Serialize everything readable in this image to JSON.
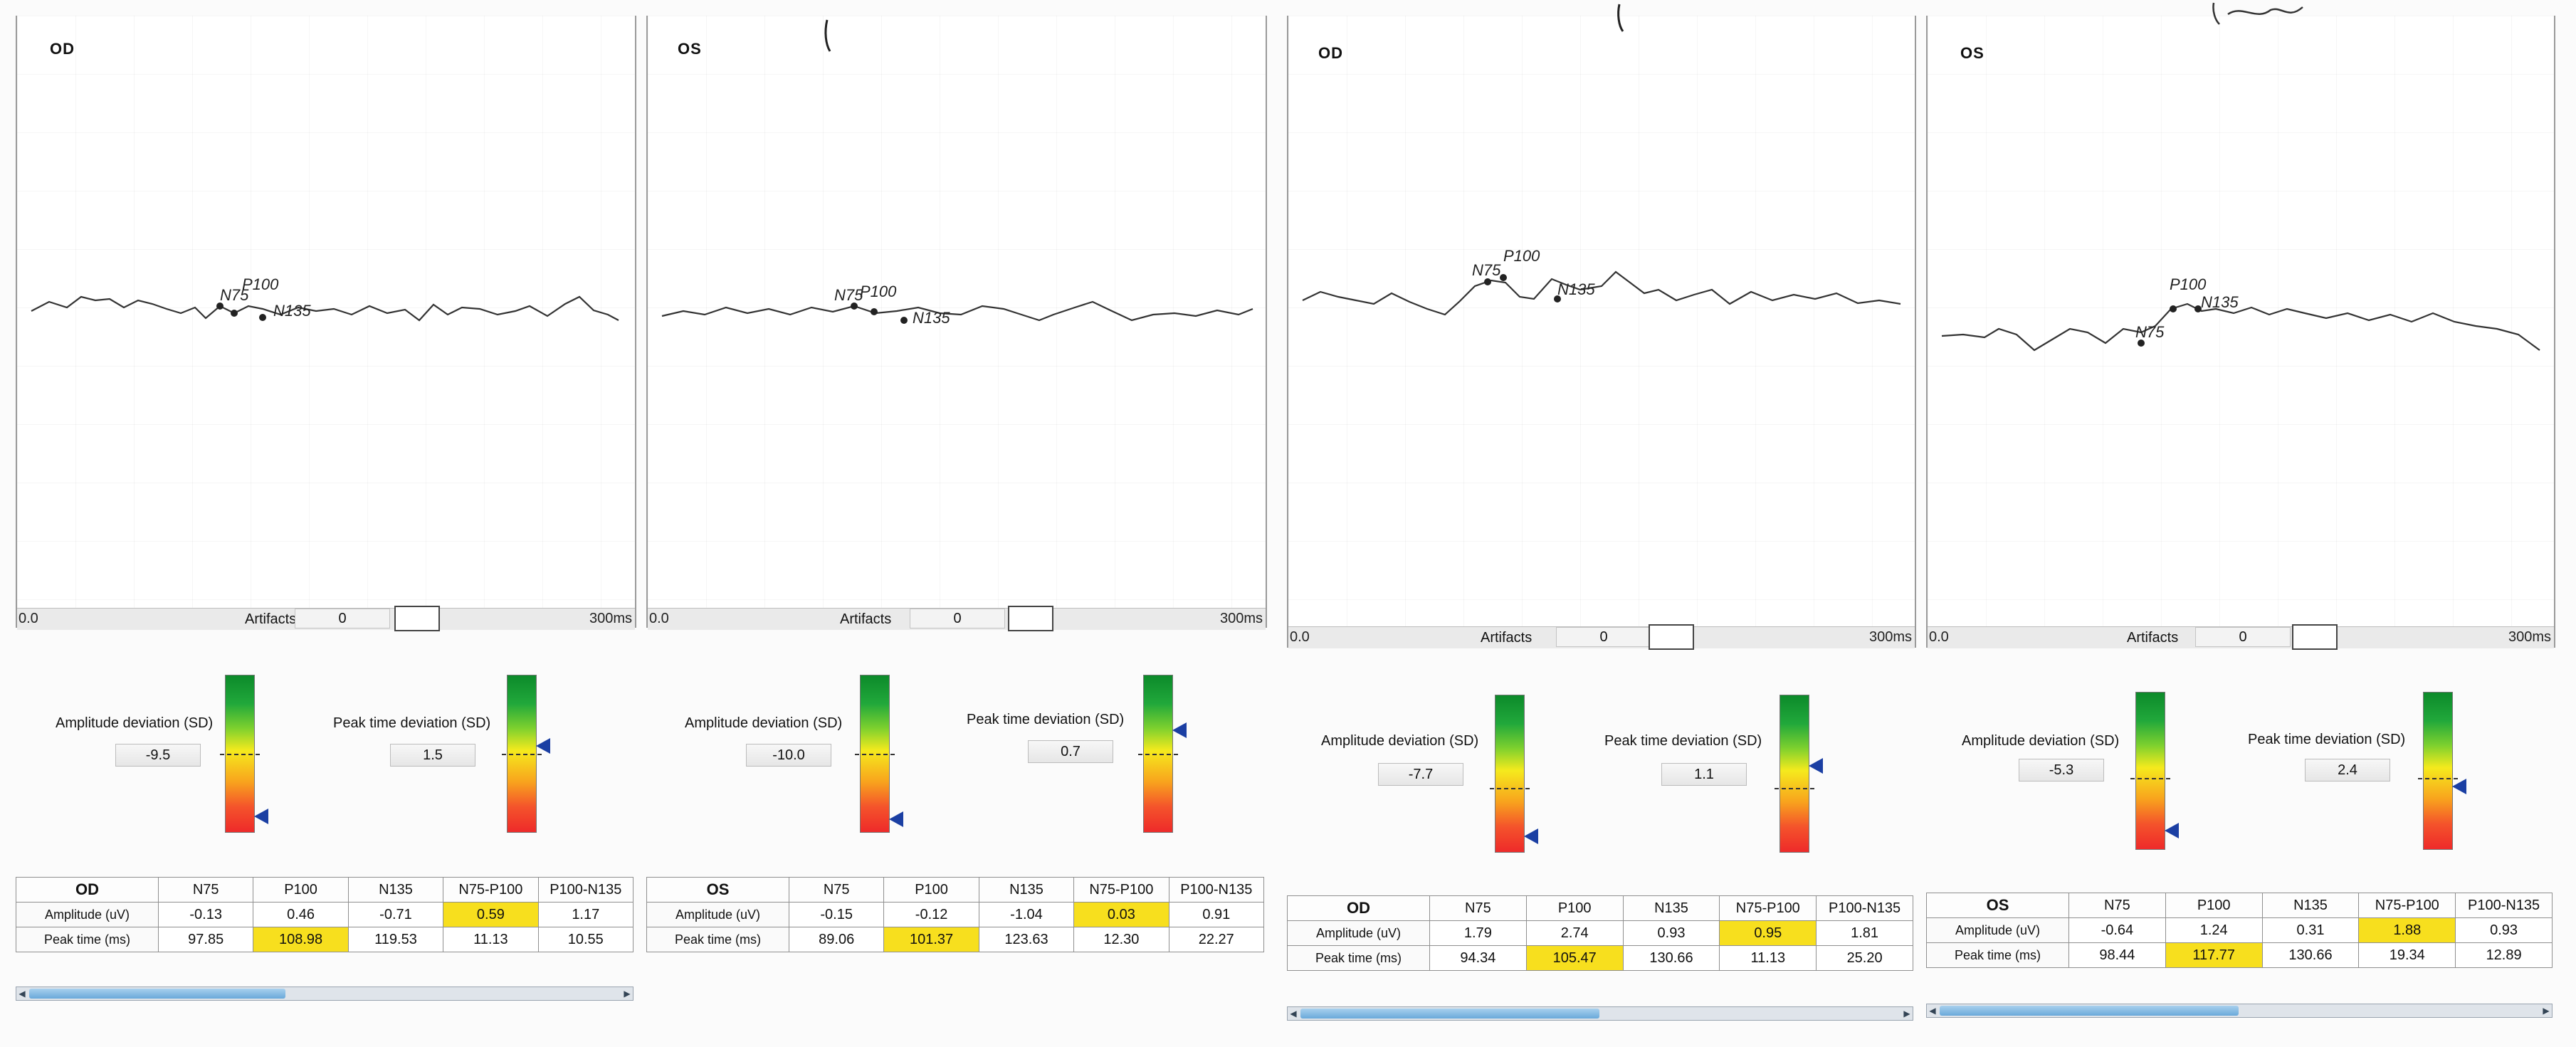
{
  "panels": [
    {
      "eye": "OD",
      "axis_start": "0.0",
      "axis_end": "300ms",
      "artifacts_label": "Artifacts",
      "artifacts_value": "0",
      "peak_labels": [
        "N75",
        "P100",
        "N135"
      ],
      "amplitude_dev_label": "Amplitude deviation (SD)",
      "amplitude_dev_value": "-9.5",
      "peak_dev_label": "Peak time deviation (SD)",
      "peak_dev_value": "1.5",
      "amp_gauge_level": 0.9,
      "peak_gauge_level": 0.45,
      "table": {
        "header": [
          "OD",
          "N75",
          "P100",
          "N135",
          "N75-P100",
          "P100-N135"
        ],
        "rows": [
          {
            "label": "Amplitude (uV)",
            "values": [
              "-0.13",
              "0.46",
              "-0.71",
              "0.59",
              "1.17"
            ]
          },
          {
            "label": "Peak time (ms)",
            "values": [
              "97.85",
              "108.98",
              "119.53",
              "11.13",
              "10.55"
            ]
          }
        ]
      }
    },
    {
      "eye": "OS",
      "axis_start": "0.0",
      "axis_end": "300ms",
      "artifacts_label": "Artifacts",
      "artifacts_value": "0",
      "peak_labels": [
        "N75",
        "P100",
        "N135"
      ],
      "amplitude_dev_label": "Amplitude deviation (SD)",
      "amplitude_dev_value": "-10.0",
      "peak_dev_label": "Peak time deviation (SD)",
      "peak_dev_value": "0.7",
      "amp_gauge_level": 0.92,
      "peak_gauge_level": 0.35,
      "table": {
        "header": [
          "OS",
          "N75",
          "P100",
          "N135",
          "N75-P100",
          "P100-N135"
        ],
        "rows": [
          {
            "label": "Amplitude (uV)",
            "values": [
              "-0.15",
              "-0.12",
              "-1.04",
              "0.03",
              "0.91"
            ]
          },
          {
            "label": "Peak time (ms)",
            "values": [
              "89.06",
              "101.37",
              "123.63",
              "12.30",
              "22.27"
            ]
          }
        ]
      }
    },
    {
      "eye": "OD",
      "axis_start": "0.0",
      "axis_end": "300ms",
      "artifacts_label": "Artifacts",
      "artifacts_value": "0",
      "peak_labels": [
        "N75",
        "P100",
        "N135"
      ],
      "amplitude_dev_label": "Amplitude deviation (SD)",
      "amplitude_dev_value": "-7.7",
      "peak_dev_label": "Peak time deviation (SD)",
      "peak_dev_value": "1.1",
      "amp_gauge_level": 0.9,
      "peak_gauge_level": 0.45,
      "table": {
        "header": [
          "OD",
          "N75",
          "P100",
          "N135",
          "N75-P100",
          "P100-N135"
        ],
        "rows": [
          {
            "label": "Amplitude (uV)",
            "values": [
              "1.79",
              "2.74",
              "0.93",
              "0.95",
              "1.81"
            ]
          },
          {
            "label": "Peak time (ms)",
            "values": [
              "94.34",
              "105.47",
              "130.66",
              "11.13",
              "25.20"
            ]
          }
        ]
      }
    },
    {
      "eye": "OS",
      "axis_start": "0.0",
      "axis_end": "300ms",
      "artifacts_label": "Artifacts",
      "artifacts_value": "0",
      "peak_labels": [
        "N75",
        "P100",
        "N135"
      ],
      "amplitude_dev_label": "Amplitude deviation (SD)",
      "amplitude_dev_value": "-5.3",
      "peak_dev_label": "Peak time deviation (SD)",
      "peak_dev_value": "2.4",
      "amp_gauge_level": 0.88,
      "peak_gauge_level": 0.6,
      "table": {
        "header": [
          "OS",
          "N75",
          "P100",
          "N135",
          "N75-P100",
          "P100-N135"
        ],
        "rows": [
          {
            "label": "Amplitude (uV)",
            "values": [
              "-0.64",
              "1.24",
              "0.31",
              "1.88",
              "0.93"
            ]
          },
          {
            "label": "Peak time (ms)",
            "values": [
              "98.44",
              "117.77",
              "130.66",
              "19.34",
              "12.89"
            ]
          }
        ]
      }
    }
  ],
  "colors": {
    "highlight": "#f7df1e",
    "gauge_arrow": "#1b3fa3",
    "wave": "#333333"
  }
}
